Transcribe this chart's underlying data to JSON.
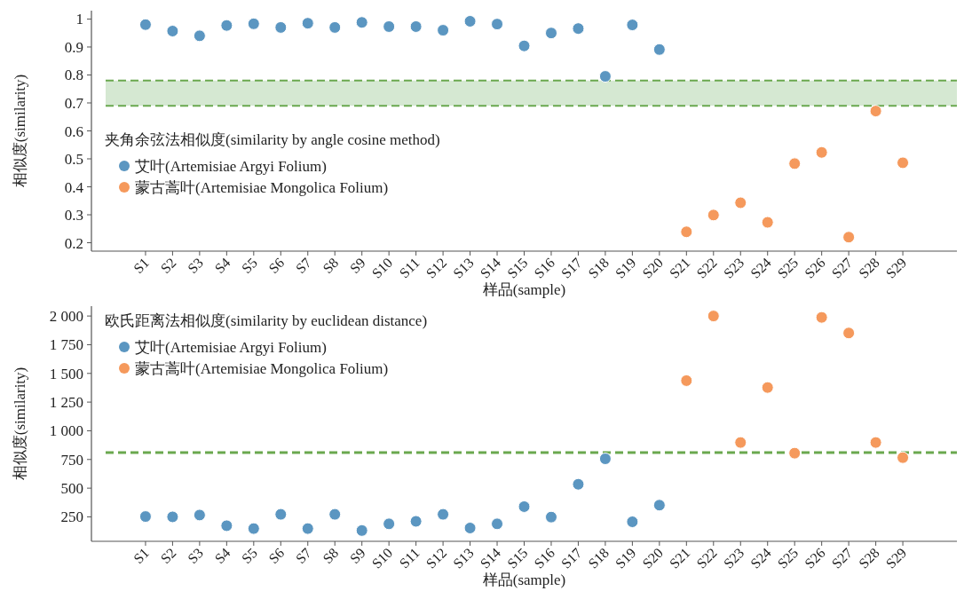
{
  "chart_data": [
    {
      "type": "scatter",
      "xlabel": "样品(sample)",
      "ylabel": "相似度(similarity)",
      "legend_title": "夹角余弦法相似度(similarity by angle cosine method)",
      "legend": "left",
      "marker": "circle",
      "grid": false,
      "categories": [
        "S1",
        "S2",
        "S3",
        "S4",
        "S5",
        "S6",
        "S7",
        "S8",
        "S9",
        "S10",
        "S11",
        "S12",
        "S13",
        "S14",
        "S15",
        "S16",
        "S17",
        "S18",
        "S19",
        "S20",
        "S21",
        "S22",
        "S23",
        "S24",
        "S25",
        "S26",
        "S27",
        "S28",
        "S29"
      ],
      "ylim": [
        0.17,
        1.03
      ],
      "yticks": [
        0.2,
        0.3,
        0.4,
        0.5,
        0.6,
        0.7,
        0.8,
        0.9,
        1
      ],
      "bands": [
        {
          "axis": "y",
          "from": 0.69,
          "to": 0.78,
          "color": "#d5e8d2"
        }
      ],
      "ref_lines": [
        {
          "axis": "y",
          "value": 0.78,
          "color": "#6aa84f",
          "line_style": "dashed"
        },
        {
          "axis": "y",
          "value": 0.69,
          "color": "#6aa84f",
          "line_style": "dashed"
        }
      ],
      "series": [
        {
          "name": "艾叶(Artemisiae Argyi Folium)",
          "color": "#5b96c1",
          "values": [
            0.98,
            0.957,
            0.94,
            0.977,
            0.983,
            0.97,
            0.985,
            0.97,
            0.988,
            0.973,
            0.973,
            0.96,
            0.992,
            0.982,
            0.904,
            0.95,
            0.966,
            0.795,
            0.979,
            0.891,
            null,
            null,
            null,
            null,
            null,
            null,
            null,
            null,
            null
          ]
        },
        {
          "name": "蒙古蒿叶(Artemisiae Mongolica Folium)",
          "color": "#f5995c",
          "values": [
            null,
            null,
            null,
            null,
            null,
            null,
            null,
            null,
            null,
            null,
            null,
            null,
            null,
            null,
            null,
            null,
            null,
            null,
            null,
            null,
            0.239,
            0.299,
            0.343,
            0.273,
            0.483,
            0.523,
            0.22,
            0.671,
            0.486
          ]
        }
      ]
    },
    {
      "type": "scatter",
      "xlabel": "样品(sample)",
      "ylabel": "相似度(similarity)",
      "legend_title": "欧氏距离法相似度(similarity by euclidean distance)",
      "legend": "top left",
      "marker": "circle",
      "grid": false,
      "categories": [
        "S1",
        "S2",
        "S3",
        "S4",
        "S5",
        "S6",
        "S7",
        "S8",
        "S9",
        "S10",
        "S11",
        "S12",
        "S13",
        "S14",
        "S15",
        "S16",
        "S17",
        "S18",
        "S19",
        "S20",
        "S21",
        "S22",
        "S23",
        "S24",
        "S25",
        "S26",
        "S27",
        "S28",
        "S29"
      ],
      "ylim": [
        37,
        2086
      ],
      "yticks": [
        250,
        500,
        750,
        {
          "value": 1000,
          "label": "1 000"
        },
        {
          "value": 1250,
          "label": "1 250"
        },
        {
          "value": 1500,
          "label": "1 500"
        },
        {
          "value": 1750,
          "label": "1 750"
        },
        {
          "value": 2000,
          "label": "2 000"
        }
      ],
      "ref_lines": [
        {
          "axis": "y",
          "value": 810,
          "color": "#6aa84f",
          "line_style": "dashed"
        }
      ],
      "series": [
        {
          "name": "艾叶(Artemisiae Argyi Folium)",
          "color": "#5b96c1",
          "values": [
            253,
            250,
            266,
            173,
            148,
            272,
            148,
            272,
            131,
            189,
            211,
            272,
            153,
            189,
            339,
            248,
            534,
            756,
            207,
            352,
            null,
            null,
            null,
            null,
            null,
            null,
            null,
            null,
            null
          ]
        },
        {
          "name": "蒙古蒿叶(Artemisiae Mongolica Folium)",
          "color": "#f5995c",
          "values": [
            null,
            null,
            null,
            null,
            null,
            null,
            null,
            null,
            null,
            null,
            null,
            null,
            null,
            null,
            null,
            null,
            null,
            null,
            null,
            null,
            1437,
            2000,
            898,
            1377,
            805,
            1988,
            1852,
            898,
            766
          ]
        }
      ]
    }
  ]
}
